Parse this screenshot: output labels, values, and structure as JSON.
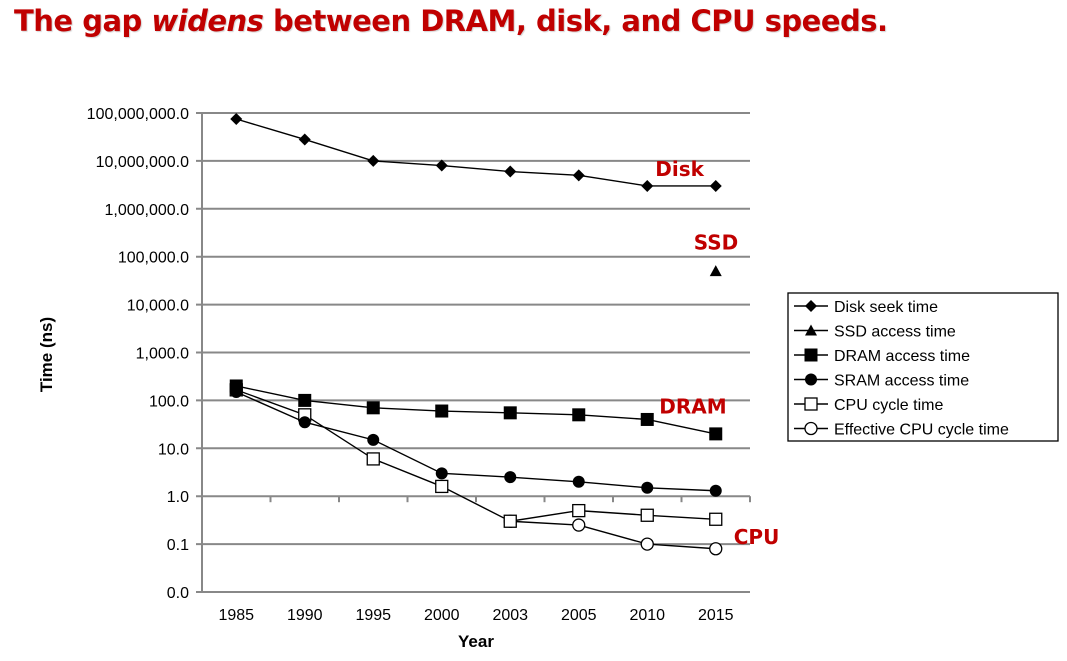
{
  "slide": {
    "title_pre": "The gap ",
    "title_em": "widens",
    "title_post": " between DRAM, disk, and CPU speeds."
  },
  "chart_data": {
    "type": "line",
    "title": "The gap widens between DRAM, disk, and CPU speeds.",
    "xlabel": "Year",
    "ylabel": "Time (ns)",
    "yscale": "log",
    "ylim": [
      0.01,
      100000000
    ],
    "grid": true,
    "categories": [
      "1985",
      "1990",
      "1995",
      "2000",
      "2003",
      "2005",
      "2010",
      "2015"
    ],
    "ytick_values": [
      100000000,
      10000000,
      1000000,
      100000,
      10000,
      1000,
      100,
      10,
      1,
      0.1,
      0.01
    ],
    "ytick_labels": [
      "100,000,000.0",
      "10,000,000.0",
      "1,000,000.0",
      "100,000.0",
      "10,000.0",
      "1,000.0",
      "100.0",
      "10.0",
      "1.0",
      "0.1",
      "0.0"
    ],
    "legend_position": "right",
    "series": [
      {
        "name": "Disk seek time",
        "marker": "diamond",
        "values": [
          75000000,
          28000000,
          10000000,
          8000000,
          6000000,
          5000000,
          3000000,
          3000000
        ]
      },
      {
        "name": "SSD access time",
        "marker": "triangle",
        "values": [
          null,
          null,
          null,
          null,
          null,
          null,
          null,
          50000
        ]
      },
      {
        "name": "DRAM access time",
        "marker": "square-filled",
        "values": [
          200,
          100,
          70,
          60,
          55,
          50,
          40,
          20
        ]
      },
      {
        "name": "SRAM access time",
        "marker": "circle-filled",
        "values": [
          150,
          35,
          15,
          3,
          2.5,
          2,
          1.5,
          1.3
        ]
      },
      {
        "name": "CPU cycle time",
        "marker": "square-open",
        "values": [
          166,
          50,
          6,
          1.6,
          0.3,
          0.5,
          0.4,
          0.33
        ]
      },
      {
        "name": "Effective CPU cycle time",
        "marker": "circle-open",
        "values": [
          null,
          null,
          null,
          null,
          0.3,
          0.25,
          0.1,
          0.08
        ]
      }
    ],
    "annotations": [
      {
        "text": "Disk",
        "near": "Disk seek time 2010-2015"
      },
      {
        "text": "SSD",
        "near": "SSD access time 2015"
      },
      {
        "text": "DRAM",
        "near": "DRAM access time 2010-2015"
      },
      {
        "text": "CPU",
        "near": "Effective CPU cycle time 2015"
      }
    ],
    "colors": {
      "annotation": "#c00000",
      "grid": "#888888",
      "line": "#000000"
    }
  }
}
